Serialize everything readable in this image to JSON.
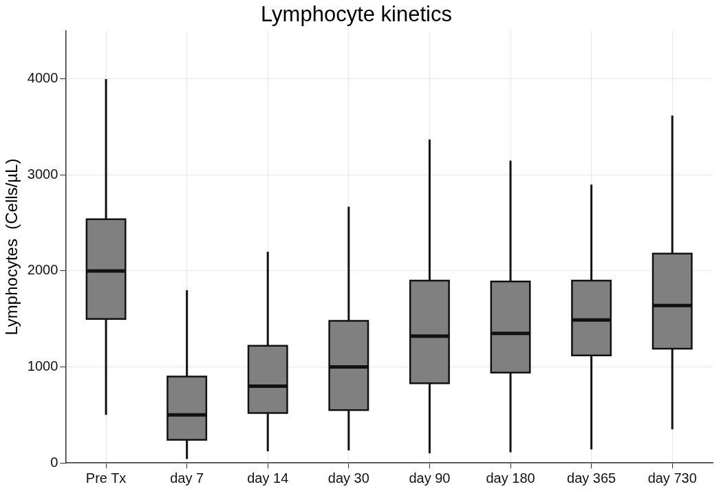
{
  "chart_data": {
    "type": "box",
    "title": "Lymphocyte kinetics",
    "ylabel": "Lymphocytes  (Cells/µL)",
    "categories": [
      "Pre Tx",
      "day 7",
      "day 14",
      "day 30",
      "day 90",
      "day 180",
      "day 365",
      "day 730"
    ],
    "color": "#808080",
    "boxes": [
      {
        "low": 500,
        "q1": 1500,
        "median": 2000,
        "q3": 2540,
        "high": 4000
      },
      {
        "low": 40,
        "q1": 240,
        "median": 500,
        "q3": 900,
        "high": 1800
      },
      {
        "low": 120,
        "q1": 520,
        "median": 800,
        "q3": 1220,
        "high": 2200
      },
      {
        "low": 130,
        "q1": 550,
        "median": 1000,
        "q3": 1480,
        "high": 2670
      },
      {
        "low": 100,
        "q1": 830,
        "median": 1320,
        "q3": 1900,
        "high": 3370
      },
      {
        "low": 110,
        "q1": 940,
        "median": 1350,
        "q3": 1890,
        "high": 3150
      },
      {
        "low": 140,
        "q1": 1120,
        "median": 1490,
        "q3": 1900,
        "high": 2900
      },
      {
        "low": 350,
        "q1": 1190,
        "median": 1640,
        "q3": 2180,
        "high": 3620
      }
    ],
    "ylim": [
      0,
      4500
    ],
    "yticks": [
      0,
      1000,
      2000,
      3000,
      4000
    ],
    "grid": true
  }
}
